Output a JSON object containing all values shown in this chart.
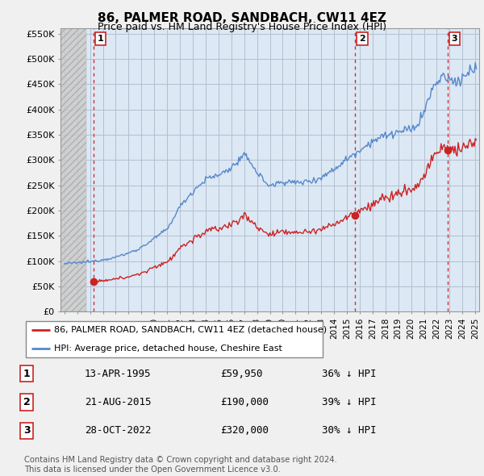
{
  "title": "86, PALMER ROAD, SANDBACH, CW11 4EZ",
  "subtitle": "Price paid vs. HM Land Registry's House Price Index (HPI)",
  "ylim": [
    0,
    560000
  ],
  "yticks": [
    0,
    50000,
    100000,
    150000,
    200000,
    250000,
    300000,
    350000,
    400000,
    450000,
    500000,
    550000
  ],
  "ytick_labels": [
    "£0",
    "£50K",
    "£100K",
    "£150K",
    "£200K",
    "£250K",
    "£300K",
    "£350K",
    "£400K",
    "£450K",
    "£500K",
    "£550K"
  ],
  "background_color": "#f0f0f0",
  "plot_bg_color": "#dde8f5",
  "grid_color": "#b0bfcf",
  "hpi_line_color": "#5588cc",
  "price_line_color": "#cc2222",
  "sale_marker_color": "#cc2222",
  "vline_color": "#cc3333",
  "hatch_fill_color": "#c8c8c8",
  "hatch_edge_color": "#999999",
  "purchases": [
    {
      "date_num": 1995.28,
      "price": 59950,
      "label": "1"
    },
    {
      "date_num": 2015.64,
      "price": 190000,
      "label": "2"
    },
    {
      "date_num": 2022.83,
      "price": 320000,
      "label": "3"
    }
  ],
  "legend_line1": "86, PALMER ROAD, SANDBACH, CW11 4EZ (detached house)",
  "legend_line2": "HPI: Average price, detached house, Cheshire East",
  "table_rows": [
    {
      "num": "1",
      "date": "13-APR-1995",
      "price": "£59,950",
      "hpi": "36% ↓ HPI"
    },
    {
      "num": "2",
      "date": "21-AUG-2015",
      "price": "£190,000",
      "hpi": "39% ↓ HPI"
    },
    {
      "num": "3",
      "date": "28-OCT-2022",
      "price": "£320,000",
      "hpi": "30% ↓ HPI"
    }
  ],
  "footer": "Contains HM Land Registry data © Crown copyright and database right 2024.\nThis data is licensed under the Open Government Licence v3.0.",
  "xlim_left": 1992.7,
  "xlim_right": 2025.3,
  "hatch_end": 1994.7
}
